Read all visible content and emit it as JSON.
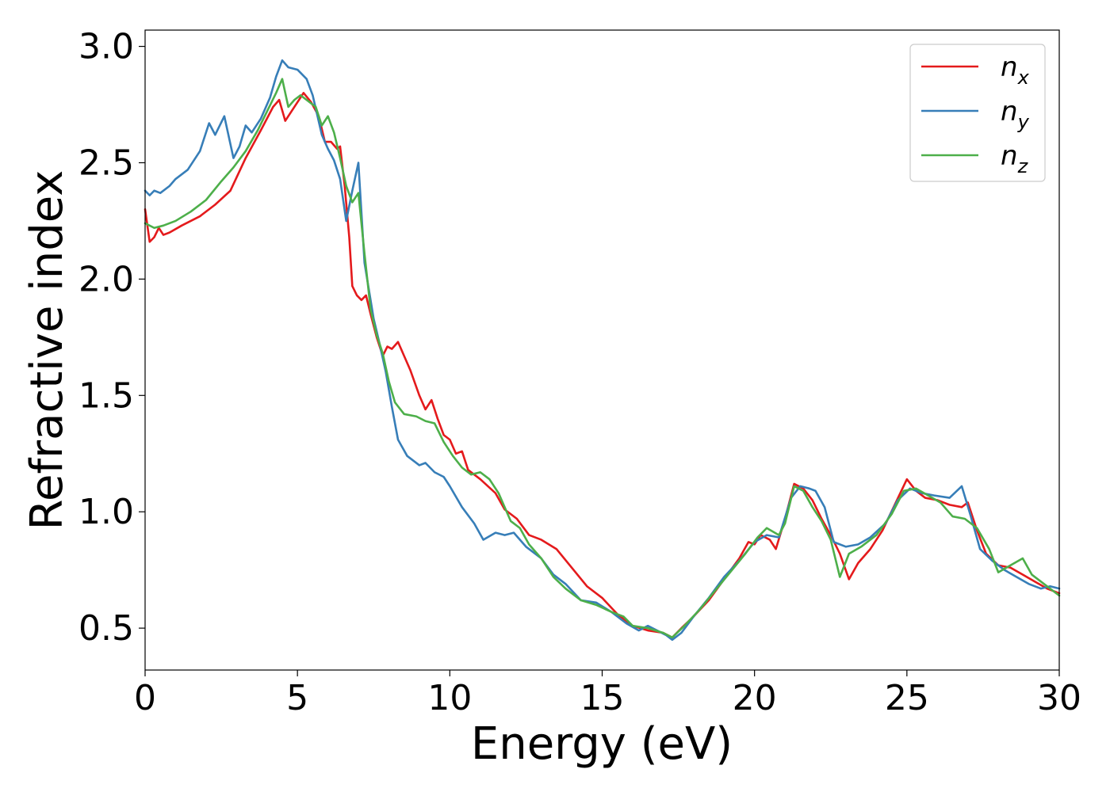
{
  "chart_data": {
    "type": "line",
    "title": "",
    "xlabel": "Energy (eV)",
    "ylabel": "Refractive index",
    "xlim": [
      0,
      30
    ],
    "ylim": [
      0.32,
      3.07
    ],
    "xticks": [
      0,
      5,
      10,
      15,
      20,
      25,
      30
    ],
    "yticks": [
      0.5,
      1.0,
      1.5,
      2.0,
      2.5,
      3.0
    ],
    "xtick_labels": [
      "0",
      "5",
      "10",
      "15",
      "20",
      "25",
      "30"
    ],
    "ytick_labels": [
      "0.5",
      "1.0",
      "1.5",
      "2.0",
      "2.5",
      "3.0"
    ],
    "grid": false,
    "legend_position": "top-right",
    "series": [
      {
        "name": "n",
        "subscript": "x",
        "color": "#e41a1c",
        "points": [
          [
            0,
            2.3
          ],
          [
            0.15,
            2.16
          ],
          [
            0.3,
            2.18
          ],
          [
            0.45,
            2.22
          ],
          [
            0.6,
            2.19
          ],
          [
            0.8,
            2.2
          ],
          [
            1.2,
            2.23
          ],
          [
            1.8,
            2.27
          ],
          [
            2.3,
            2.32
          ],
          [
            2.8,
            2.38
          ],
          [
            3.3,
            2.52
          ],
          [
            3.8,
            2.64
          ],
          [
            4.2,
            2.74
          ],
          [
            4.4,
            2.77
          ],
          [
            4.6,
            2.68
          ],
          [
            4.8,
            2.72
          ],
          [
            5.0,
            2.76
          ],
          [
            5.2,
            2.8
          ],
          [
            5.45,
            2.76
          ],
          [
            5.7,
            2.7
          ],
          [
            5.9,
            2.59
          ],
          [
            6.1,
            2.59
          ],
          [
            6.3,
            2.56
          ],
          [
            6.4,
            2.57
          ],
          [
            6.55,
            2.4
          ],
          [
            6.7,
            2.18
          ],
          [
            6.8,
            1.97
          ],
          [
            6.95,
            1.93
          ],
          [
            7.1,
            1.91
          ],
          [
            7.25,
            1.93
          ],
          [
            7.4,
            1.85
          ],
          [
            7.6,
            1.75
          ],
          [
            7.8,
            1.67
          ],
          [
            7.95,
            1.71
          ],
          [
            8.1,
            1.7
          ],
          [
            8.3,
            1.73
          ],
          [
            8.5,
            1.67
          ],
          [
            8.7,
            1.61
          ],
          [
            9.0,
            1.5
          ],
          [
            9.2,
            1.44
          ],
          [
            9.4,
            1.48
          ],
          [
            9.6,
            1.4
          ],
          [
            9.8,
            1.33
          ],
          [
            10.0,
            1.31
          ],
          [
            10.2,
            1.25
          ],
          [
            10.4,
            1.26
          ],
          [
            10.6,
            1.18
          ],
          [
            11.0,
            1.14
          ],
          [
            11.5,
            1.08
          ],
          [
            11.8,
            1.01
          ],
          [
            12.2,
            0.97
          ],
          [
            12.6,
            0.9
          ],
          [
            13.0,
            0.88
          ],
          [
            13.5,
            0.84
          ],
          [
            14.0,
            0.76
          ],
          [
            14.5,
            0.68
          ],
          [
            15.0,
            0.63
          ],
          [
            15.5,
            0.56
          ],
          [
            16.0,
            0.51
          ],
          [
            16.5,
            0.49
          ],
          [
            17.0,
            0.48
          ],
          [
            17.3,
            0.46
          ],
          [
            17.6,
            0.5
          ],
          [
            18.0,
            0.55
          ],
          [
            18.5,
            0.62
          ],
          [
            19.0,
            0.71
          ],
          [
            19.5,
            0.8
          ],
          [
            19.8,
            0.87
          ],
          [
            20.0,
            0.86
          ],
          [
            20.2,
            0.9
          ],
          [
            20.5,
            0.88
          ],
          [
            20.7,
            0.84
          ],
          [
            21.0,
            0.97
          ],
          [
            21.3,
            1.12
          ],
          [
            21.6,
            1.1
          ],
          [
            21.9,
            1.05
          ],
          [
            22.2,
            0.97
          ],
          [
            22.5,
            0.9
          ],
          [
            22.8,
            0.82
          ],
          [
            23.1,
            0.71
          ],
          [
            23.4,
            0.78
          ],
          [
            23.8,
            0.84
          ],
          [
            24.2,
            0.92
          ],
          [
            24.6,
            1.03
          ],
          [
            25.0,
            1.14
          ],
          [
            25.3,
            1.09
          ],
          [
            25.6,
            1.06
          ],
          [
            26.0,
            1.05
          ],
          [
            26.4,
            1.03
          ],
          [
            26.8,
            1.02
          ],
          [
            27.0,
            1.04
          ],
          [
            27.3,
            0.92
          ],
          [
            27.6,
            0.82
          ],
          [
            28.0,
            0.77
          ],
          [
            28.4,
            0.76
          ],
          [
            28.8,
            0.73
          ],
          [
            29.2,
            0.7
          ],
          [
            29.6,
            0.67
          ],
          [
            30.0,
            0.65
          ]
        ]
      },
      {
        "name": "n",
        "subscript": "y",
        "color": "#377eb8",
        "points": [
          [
            0,
            2.38
          ],
          [
            0.15,
            2.36
          ],
          [
            0.3,
            2.38
          ],
          [
            0.5,
            2.37
          ],
          [
            0.8,
            2.4
          ],
          [
            1.0,
            2.43
          ],
          [
            1.4,
            2.47
          ],
          [
            1.8,
            2.55
          ],
          [
            2.1,
            2.67
          ],
          [
            2.3,
            2.62
          ],
          [
            2.6,
            2.7
          ],
          [
            2.9,
            2.52
          ],
          [
            3.1,
            2.57
          ],
          [
            3.3,
            2.66
          ],
          [
            3.5,
            2.63
          ],
          [
            3.8,
            2.69
          ],
          [
            4.1,
            2.78
          ],
          [
            4.3,
            2.87
          ],
          [
            4.5,
            2.94
          ],
          [
            4.7,
            2.91
          ],
          [
            5.0,
            2.9
          ],
          [
            5.3,
            2.86
          ],
          [
            5.5,
            2.79
          ],
          [
            5.8,
            2.62
          ],
          [
            6.0,
            2.56
          ],
          [
            6.2,
            2.51
          ],
          [
            6.4,
            2.43
          ],
          [
            6.6,
            2.25
          ],
          [
            6.8,
            2.38
          ],
          [
            7.0,
            2.5
          ],
          [
            7.2,
            2.07
          ],
          [
            7.5,
            1.83
          ],
          [
            7.7,
            1.72
          ],
          [
            7.9,
            1.6
          ],
          [
            8.1,
            1.45
          ],
          [
            8.3,
            1.31
          ],
          [
            8.6,
            1.24
          ],
          [
            9.0,
            1.2
          ],
          [
            9.2,
            1.21
          ],
          [
            9.5,
            1.17
          ],
          [
            9.8,
            1.15
          ],
          [
            10.0,
            1.11
          ],
          [
            10.4,
            1.02
          ],
          [
            10.8,
            0.95
          ],
          [
            11.1,
            0.88
          ],
          [
            11.5,
            0.91
          ],
          [
            11.8,
            0.9
          ],
          [
            12.1,
            0.91
          ],
          [
            12.5,
            0.85
          ],
          [
            13.0,
            0.8
          ],
          [
            13.4,
            0.73
          ],
          [
            13.8,
            0.69
          ],
          [
            14.3,
            0.62
          ],
          [
            14.8,
            0.61
          ],
          [
            15.3,
            0.57
          ],
          [
            15.8,
            0.52
          ],
          [
            16.2,
            0.49
          ],
          [
            16.5,
            0.51
          ],
          [
            16.8,
            0.49
          ],
          [
            17.1,
            0.47
          ],
          [
            17.3,
            0.45
          ],
          [
            17.6,
            0.48
          ],
          [
            18.0,
            0.55
          ],
          [
            18.5,
            0.63
          ],
          [
            19.0,
            0.72
          ],
          [
            19.5,
            0.79
          ],
          [
            20.0,
            0.87
          ],
          [
            20.4,
            0.9
          ],
          [
            20.8,
            0.89
          ],
          [
            21.2,
            1.06
          ],
          [
            21.5,
            1.11
          ],
          [
            21.8,
            1.1
          ],
          [
            22.0,
            1.09
          ],
          [
            22.3,
            1.02
          ],
          [
            22.6,
            0.87
          ],
          [
            23.0,
            0.85
          ],
          [
            23.4,
            0.86
          ],
          [
            23.8,
            0.89
          ],
          [
            24.3,
            0.95
          ],
          [
            24.7,
            1.05
          ],
          [
            25.1,
            1.1
          ],
          [
            25.5,
            1.08
          ],
          [
            25.9,
            1.07
          ],
          [
            26.4,
            1.06
          ],
          [
            26.8,
            1.11
          ],
          [
            27.1,
            0.98
          ],
          [
            27.4,
            0.84
          ],
          [
            27.8,
            0.79
          ],
          [
            28.2,
            0.75
          ],
          [
            28.6,
            0.72
          ],
          [
            29.0,
            0.69
          ],
          [
            29.4,
            0.67
          ],
          [
            29.7,
            0.68
          ],
          [
            30.0,
            0.67
          ]
        ]
      },
      {
        "name": "n",
        "subscript": "z",
        "color": "#4daf4a",
        "points": [
          [
            0,
            2.24
          ],
          [
            0.3,
            2.22
          ],
          [
            0.6,
            2.23
          ],
          [
            1.0,
            2.25
          ],
          [
            1.5,
            2.29
          ],
          [
            2.0,
            2.34
          ],
          [
            2.5,
            2.42
          ],
          [
            2.9,
            2.48
          ],
          [
            3.3,
            2.55
          ],
          [
            3.7,
            2.64
          ],
          [
            4.0,
            2.72
          ],
          [
            4.3,
            2.8
          ],
          [
            4.5,
            2.86
          ],
          [
            4.7,
            2.74
          ],
          [
            4.9,
            2.77
          ],
          [
            5.1,
            2.79
          ],
          [
            5.3,
            2.77
          ],
          [
            5.6,
            2.74
          ],
          [
            5.8,
            2.66
          ],
          [
            6.0,
            2.7
          ],
          [
            6.2,
            2.63
          ],
          [
            6.4,
            2.52
          ],
          [
            6.6,
            2.4
          ],
          [
            6.8,
            2.33
          ],
          [
            7.0,
            2.37
          ],
          [
            7.2,
            2.11
          ],
          [
            7.4,
            1.87
          ],
          [
            7.6,
            1.76
          ],
          [
            7.8,
            1.68
          ],
          [
            8.0,
            1.56
          ],
          [
            8.2,
            1.47
          ],
          [
            8.5,
            1.42
          ],
          [
            8.9,
            1.41
          ],
          [
            9.2,
            1.39
          ],
          [
            9.5,
            1.38
          ],
          [
            9.8,
            1.3
          ],
          [
            10.1,
            1.24
          ],
          [
            10.4,
            1.19
          ],
          [
            10.7,
            1.16
          ],
          [
            11.0,
            1.17
          ],
          [
            11.3,
            1.14
          ],
          [
            11.6,
            1.08
          ],
          [
            12.0,
            0.96
          ],
          [
            12.3,
            0.93
          ],
          [
            12.6,
            0.86
          ],
          [
            13.0,
            0.8
          ],
          [
            13.4,
            0.72
          ],
          [
            13.8,
            0.67
          ],
          [
            14.3,
            0.62
          ],
          [
            14.8,
            0.6
          ],
          [
            15.3,
            0.57
          ],
          [
            15.7,
            0.55
          ],
          [
            16.0,
            0.51
          ],
          [
            16.5,
            0.5
          ],
          [
            17.0,
            0.48
          ],
          [
            17.3,
            0.46
          ],
          [
            17.7,
            0.51
          ],
          [
            18.2,
            0.58
          ],
          [
            18.7,
            0.66
          ],
          [
            19.2,
            0.74
          ],
          [
            19.7,
            0.82
          ],
          [
            20.1,
            0.89
          ],
          [
            20.4,
            0.93
          ],
          [
            20.8,
            0.9
          ],
          [
            21.0,
            0.95
          ],
          [
            21.3,
            1.11
          ],
          [
            21.6,
            1.09
          ],
          [
            21.9,
            1.02
          ],
          [
            22.2,
            0.96
          ],
          [
            22.5,
            0.88
          ],
          [
            22.8,
            0.72
          ],
          [
            23.1,
            0.82
          ],
          [
            23.5,
            0.85
          ],
          [
            24.0,
            0.9
          ],
          [
            24.5,
            0.99
          ],
          [
            24.9,
            1.09
          ],
          [
            25.3,
            1.1
          ],
          [
            25.7,
            1.07
          ],
          [
            26.1,
            1.04
          ],
          [
            26.5,
            0.98
          ],
          [
            26.9,
            0.97
          ],
          [
            27.3,
            0.93
          ],
          [
            27.7,
            0.84
          ],
          [
            28.0,
            0.74
          ],
          [
            28.4,
            0.77
          ],
          [
            28.8,
            0.8
          ],
          [
            29.1,
            0.73
          ],
          [
            29.5,
            0.69
          ],
          [
            30.0,
            0.64
          ]
        ]
      }
    ]
  }
}
